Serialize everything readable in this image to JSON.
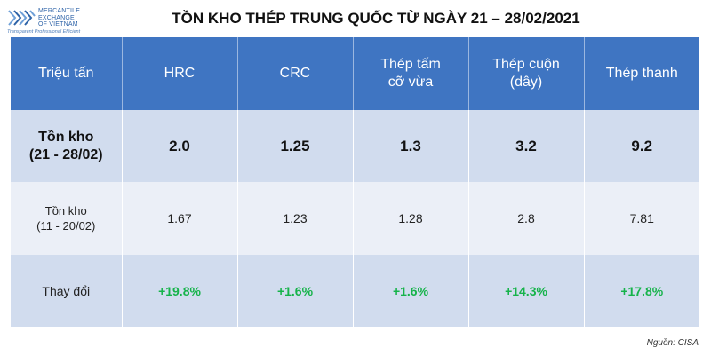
{
  "logo": {
    "lines": [
      "MERCANTILE",
      "EXCHANGE",
      "OF VIETNAM"
    ],
    "tagline": "Transparent Professional Efficient",
    "colors": {
      "primary": "#2f64a8",
      "light": "#6fa0d8"
    }
  },
  "title": "TỒN KHO THÉP TRUNG QUỐC TỪ NGÀY 21 – 28/02/2021",
  "table": {
    "header": {
      "unit": "Triệu tấn",
      "columns": [
        {
          "line1": "HRC",
          "line2": ""
        },
        {
          "line1": "CRC",
          "line2": ""
        },
        {
          "line1": "Thép tấm",
          "line2": "cỡ vừa"
        },
        {
          "line1": "Thép cuộn",
          "line2": "(dây)"
        },
        {
          "line1": "Thép thanh",
          "line2": ""
        }
      ]
    },
    "rows": [
      {
        "label1": "Tồn kho",
        "label2": "(21 - 28/02)",
        "values": [
          "2.0",
          "1.25",
          "1.3",
          "3.2",
          "9.2"
        ]
      },
      {
        "label1": "Tồn kho",
        "label2": "(11 - 20/02)",
        "values": [
          "1.67",
          "1.23",
          "1.28",
          "2.8",
          "7.81"
        ]
      },
      {
        "label1": "Thay đổi",
        "label2": "",
        "values": [
          "+19.8%",
          "+1.6%",
          "+1.6%",
          "+14.3%",
          "+17.8%"
        ]
      }
    ],
    "colors": {
      "header_bg": "#3f75c2",
      "row_dark": "#d1dcee",
      "row_light": "#ebeff7",
      "positive": "#16b34a"
    }
  },
  "source": "Nguồn: CISA"
}
